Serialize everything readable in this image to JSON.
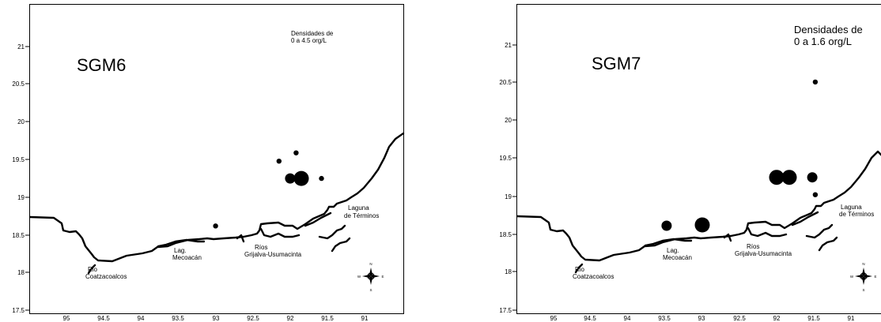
{
  "maps": [
    {
      "title": "SGM6",
      "density_label": [
        "Densidades de",
        "0 a 4.5 org/L"
      ],
      "x_ticks": [
        "95",
        "94.5",
        "94",
        "93.5",
        "93",
        "92.5",
        "92",
        "91.5",
        "91"
      ],
      "y_ticks": [
        "21",
        "20.5",
        "20",
        "19.5",
        "19",
        "18.5",
        "18",
        "17.5"
      ],
      "places": [
        {
          "id": "coatzacoalcos",
          "lines": [
            "Rio",
            "Coatzacoalcos"
          ]
        },
        {
          "id": "mecoacan",
          "lines": [
            "Lag.",
            "Mecoacán"
          ]
        },
        {
          "id": "grijalva",
          "lines": [
            "Ríos",
            "Grijalva-Usumacinta"
          ]
        },
        {
          "id": "terminos",
          "lines": [
            "Laguna",
            "de Términos"
          ]
        }
      ],
      "compass": {
        "n": "N",
        "s": "S",
        "e": "E",
        "w": "W"
      },
      "stations": [
        {
          "lon": -92.15,
          "lat": 19.48,
          "size": "small"
        },
        {
          "lon": -91.92,
          "lat": 19.59,
          "size": "small"
        },
        {
          "lon": -91.58,
          "lat": 19.25,
          "size": "small"
        },
        {
          "lon": -92.0,
          "lat": 19.25,
          "size": "medium"
        },
        {
          "lon": -91.85,
          "lat": 19.25,
          "size": "large"
        },
        {
          "lon": -93.0,
          "lat": 18.62,
          "size": "small"
        }
      ]
    },
    {
      "title": "SGM7",
      "density_label": [
        "Densidades de",
        "0 a 1.6 org/L"
      ],
      "x_ticks": [
        "95",
        "94.5",
        "94",
        "93.5",
        "93",
        "92.5",
        "92",
        "91.5",
        "91"
      ],
      "y_ticks": [
        "21",
        "20.5",
        "20",
        "19.5",
        "19",
        "18.5",
        "18",
        "17.5"
      ],
      "places": [
        {
          "id": "coatzacoalcos",
          "lines": [
            "Rio",
            "Coatzacoalcos"
          ]
        },
        {
          "id": "mecoacan",
          "lines": [
            "Lag.",
            "Mecoacán"
          ]
        },
        {
          "id": "grijalva",
          "lines": [
            "Ríos",
            "Grijalva-Usumacinta"
          ]
        },
        {
          "id": "terminos",
          "lines": [
            "Laguna",
            "de Términos"
          ]
        }
      ],
      "compass": {
        "n": "N",
        "s": "S",
        "e": "E",
        "w": "W"
      },
      "stations": [
        {
          "lon": -91.48,
          "lat": 20.51,
          "size": "small"
        },
        {
          "lon": -92.0,
          "lat": 19.25,
          "size": "large"
        },
        {
          "lon": -91.83,
          "lat": 19.25,
          "size": "large"
        },
        {
          "lon": -91.52,
          "lat": 19.25,
          "size": "medium"
        },
        {
          "lon": -91.48,
          "lat": 19.02,
          "size": "small"
        },
        {
          "lon": -93.48,
          "lat": 18.61,
          "size": "medium"
        },
        {
          "lon": -93.0,
          "lat": 18.62,
          "size": "large"
        }
      ]
    }
  ]
}
